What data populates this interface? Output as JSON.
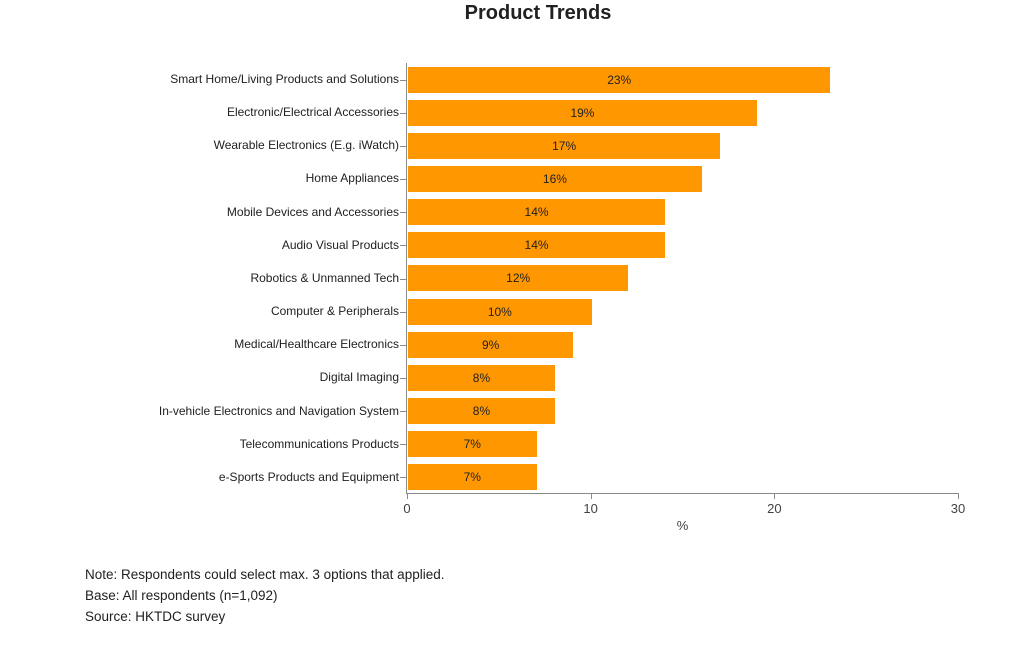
{
  "title": "Product Trends",
  "chart_data": {
    "type": "bar",
    "orientation": "horizontal",
    "title": "Product Trends",
    "categories": [
      "Smart Home/Living Products and Solutions",
      "Electronic/Electrical Accessories",
      "Wearable Electronics (E.g. iWatch)",
      "Home Appliances",
      "Mobile Devices and Accessories",
      "Audio Visual Products",
      "Robotics & Unmanned Tech",
      "Computer & Peripherals",
      "Medical/Healthcare Electronics",
      "Digital Imaging",
      "In-vehicle Electronics and Navigation System",
      "Telecommunications Products",
      "e-Sports Products and Equipment"
    ],
    "values": [
      23,
      19,
      17,
      16,
      14,
      14,
      12,
      10,
      9,
      8,
      8,
      7,
      7
    ],
    "value_labels": [
      "23%",
      "19%",
      "17%",
      "16%",
      "14%",
      "14%",
      "12%",
      "10%",
      "9%",
      "8%",
      "8%",
      "7%",
      "7%"
    ],
    "xlabel": "%",
    "xlim": [
      0,
      30
    ],
    "xticks": [
      0,
      10,
      20,
      30
    ],
    "grid": false,
    "legend": "none",
    "bar_color": "#FF9800",
    "axis_color": "#8a8a8a"
  },
  "notes": {
    "note": "Note: Respondents could select max. 3 options that applied.",
    "base": "Base: All respondents (n=1,092)",
    "source": "Source: HKTDC survey"
  }
}
